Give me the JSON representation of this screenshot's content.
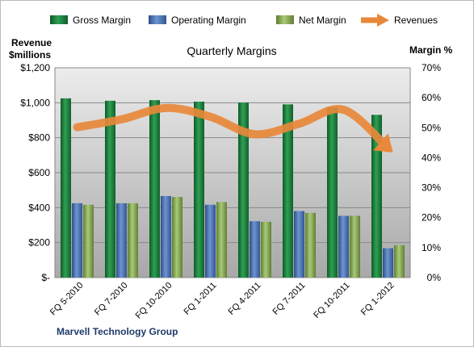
{
  "chart_data": {
    "type": "bar",
    "title": "Quarterly Margins",
    "caption": "Marvell Technology Group",
    "categories": [
      "FQ 5-2010",
      "FQ 7-2010",
      "FQ 10-2010",
      "FQ 1-2011",
      "FQ 4-2011",
      "FQ 7-2011",
      "FQ 10-2011",
      "FQ 1-2012"
    ],
    "left_axis": {
      "title_line1": "Revenue",
      "title_line2": "$millions",
      "range": [
        0,
        1200
      ],
      "ticks": [
        0,
        200,
        400,
        600,
        800,
        1000,
        1200
      ],
      "tick_labels": [
        "$-",
        "$200",
        "$400",
        "$600",
        "$800",
        "$1,000",
        "$1,200"
      ]
    },
    "right_axis": {
      "title": "Margin %",
      "range": [
        0,
        70
      ],
      "ticks": [
        0,
        10,
        20,
        30,
        40,
        50,
        60,
        70
      ],
      "tick_labels": [
        "0%",
        "10%",
        "20%",
        "30%",
        "40%",
        "50%",
        "60%",
        "70%"
      ]
    },
    "series": [
      {
        "name": "Gross Margin",
        "type": "bar",
        "axis": "right",
        "color": "#1e8040",
        "values": [
          59.8,
          59.0,
          59.2,
          58.7,
          58.4,
          57.8,
          56.8,
          54.3
        ]
      },
      {
        "name": "Operating Margin",
        "type": "bar",
        "axis": "right",
        "color": "#4f78b8",
        "values": [
          24.8,
          24.8,
          27.2,
          24.3,
          18.8,
          22.2,
          20.6,
          9.8
        ]
      },
      {
        "name": "Net Margin",
        "type": "bar",
        "axis": "right",
        "color": "#8aaf52",
        "values": [
          24.3,
          24.8,
          26.9,
          25.2,
          18.6,
          21.6,
          20.6,
          10.8
        ]
      },
      {
        "name": "Revenues",
        "type": "line",
        "axis": "left",
        "color": "#e8883a",
        "values": [
          860,
          905,
          970,
          920,
          820,
          880,
          960,
          740
        ]
      }
    ],
    "grid": true,
    "legend_position": "top"
  }
}
